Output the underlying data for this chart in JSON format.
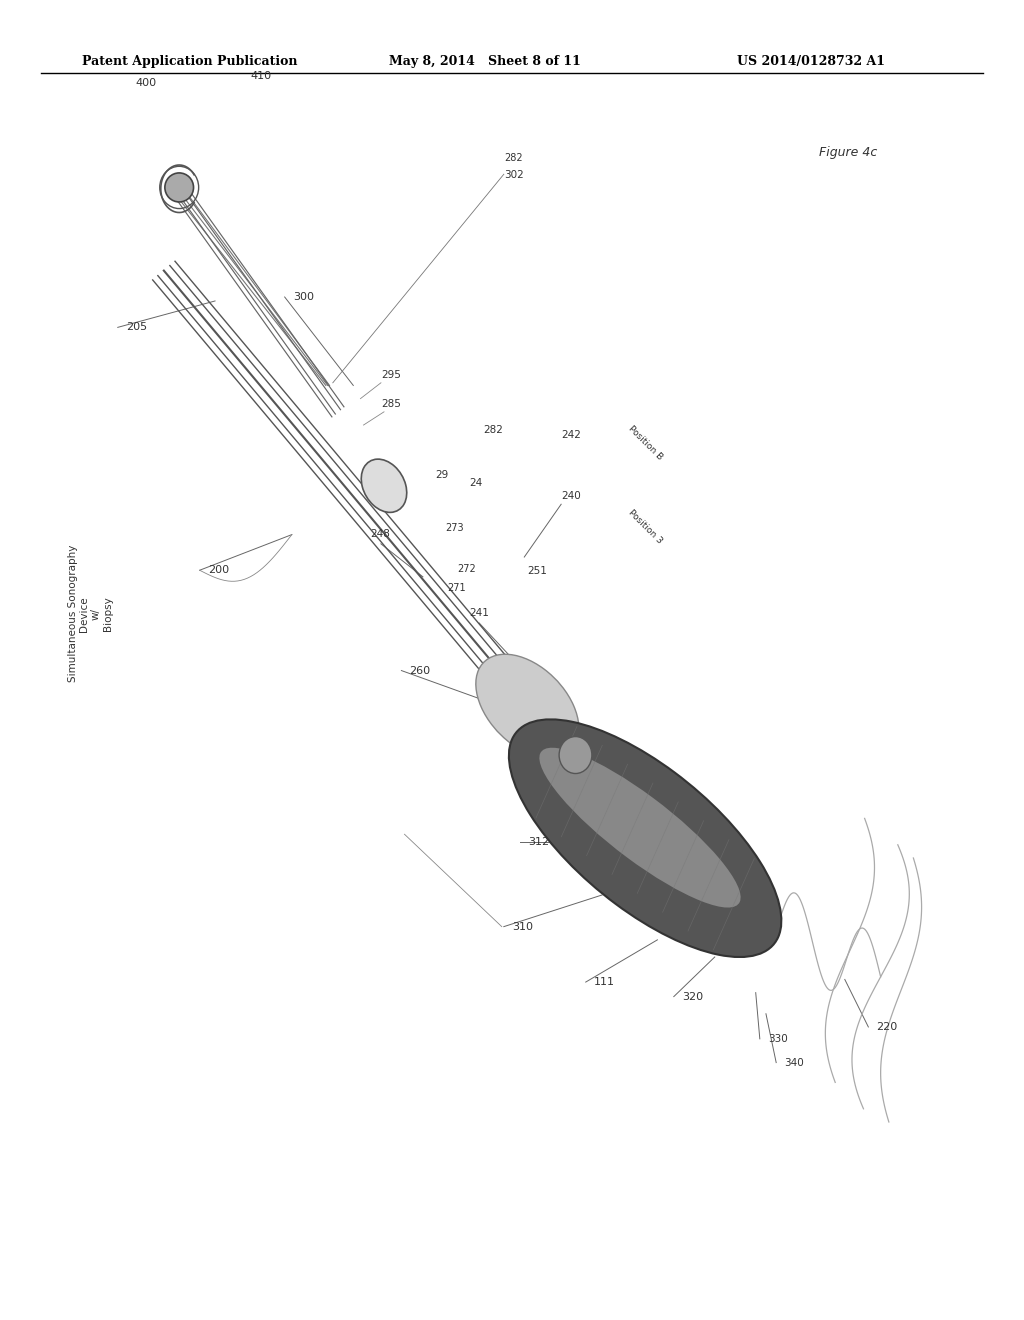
{
  "bg_color": "#ffffff",
  "header_left": "Patent Application Publication",
  "header_mid": "May 8, 2014   Sheet 8 of 11",
  "header_right": "US 2014/0128732 A1",
  "figure_label": "Figure 4c",
  "side_label": "Simultaneous Sonography\nDevice\nw/\nBiopsy"
}
